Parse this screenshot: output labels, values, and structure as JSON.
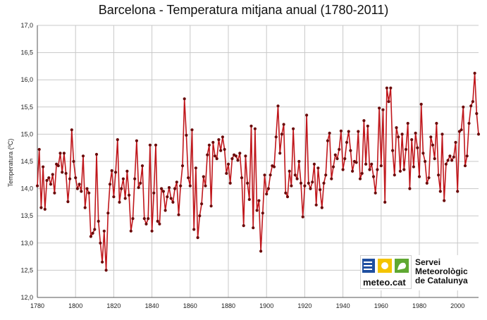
{
  "title": "Barcelona - Temperatura mitjana anual (1780-2011)",
  "chart_data": {
    "type": "line",
    "title": "Barcelona - Temperatura mitjana anual (1780-2011)",
    "xlabel": "",
    "ylabel": "Temperatura (ºC)",
    "xlim": [
      1780,
      2011
    ],
    "ylim": [
      12.0,
      17.0
    ],
    "x_ticks": [
      "1780",
      "1800",
      "1820",
      "1840",
      "1860",
      "1880",
      "1900",
      "1920",
      "1940",
      "1960",
      "1980",
      "2000"
    ],
    "y_ticks": [
      "12,0",
      "12,5",
      "13,0",
      "13,5",
      "14,0",
      "14,5",
      "15,0",
      "15,5",
      "16,0",
      "16,5",
      "17,0"
    ],
    "grid": true,
    "series_color": "#c0171c",
    "marker_color": "#6b0a0a",
    "series": [
      {
        "x_start": 1780,
        "values": [
          14.05,
          14.72,
          13.65,
          14.4,
          13.62,
          14.15,
          14.2,
          14.08,
          14.26,
          13.92,
          14.45,
          14.42,
          14.65,
          14.3,
          14.65,
          14.28,
          13.76,
          14.18,
          15.08,
          14.5,
          14.2,
          14.0,
          14.08,
          13.95,
          14.6,
          13.65,
          14.0,
          13.92,
          13.12,
          13.18,
          13.25,
          14.63,
          13.4,
          13.0,
          12.65,
          13.22,
          12.5,
          13.55,
          14.08,
          14.33,
          13.85,
          14.3,
          14.9,
          13.75,
          14.0,
          14.18,
          13.82,
          14.32,
          13.88,
          13.22,
          13.45,
          14.18,
          14.88,
          14.02,
          14.1,
          14.42,
          13.45,
          13.35,
          13.45,
          14.8,
          13.22,
          13.92,
          14.8,
          13.4,
          13.35,
          14.0,
          13.95,
          13.6,
          13.85,
          14.02,
          13.82,
          13.75,
          14.0,
          14.12,
          13.52,
          14.05,
          14.42,
          15.65,
          14.98,
          14.2,
          14.05,
          15.08,
          13.25,
          14.38,
          13.1,
          13.5,
          13.72,
          14.22,
          14.05,
          14.62,
          14.8,
          13.68,
          14.85,
          14.6,
          14.55,
          14.9,
          14.7,
          14.95,
          14.72,
          14.28,
          14.45,
          14.1,
          14.55,
          14.62,
          14.6,
          14.52,
          14.65,
          14.2,
          13.32,
          14.6,
          14.1,
          13.8,
          15.15,
          13.28,
          15.1,
          13.6,
          13.78,
          12.85,
          13.55,
          14.25,
          13.9,
          14.0,
          14.25,
          14.42,
          14.4,
          14.95,
          15.52,
          14.65,
          15.0,
          15.18,
          13.92,
          13.85,
          14.32,
          14.05,
          15.1,
          14.25,
          14.18,
          14.5,
          14.1,
          13.48,
          14.05,
          15.35,
          14.1,
          14.0,
          14.12,
          14.45,
          13.7,
          14.38,
          13.98,
          13.65,
          14.1,
          14.25,
          14.88,
          15.02,
          14.18,
          14.4,
          14.62,
          14.55,
          14.72,
          15.06,
          14.35,
          14.55,
          14.85,
          15.05,
          14.7,
          14.32,
          14.5,
          14.48,
          15.05,
          14.18,
          14.28,
          15.25,
          14.45,
          15.15,
          14.35,
          14.45,
          14.22,
          13.92,
          14.35,
          15.48,
          14.42,
          15.45,
          13.75,
          15.85,
          15.6,
          15.85,
          14.7,
          14.25,
          15.12,
          14.95,
          14.32,
          15.0,
          14.35,
          14.72,
          15.2,
          14.0,
          14.9,
          14.4,
          15.02,
          14.75,
          14.22,
          15.55,
          14.65,
          14.5,
          14.1,
          14.2,
          14.95,
          14.8,
          14.55,
          15.2,
          14.25,
          13.95,
          15.0,
          13.78,
          14.45,
          14.52,
          14.6,
          14.52,
          14.58,
          14.85,
          13.95,
          15.05,
          15.08,
          15.5,
          14.42,
          14.6,
          15.2,
          15.52,
          15.6,
          16.12,
          15.38,
          15.0
        ]
      }
    ]
  },
  "logo": {
    "word": "meteo.cat",
    "lines": [
      "Servei",
      "Meteorològic",
      "de Catalunya"
    ]
  }
}
